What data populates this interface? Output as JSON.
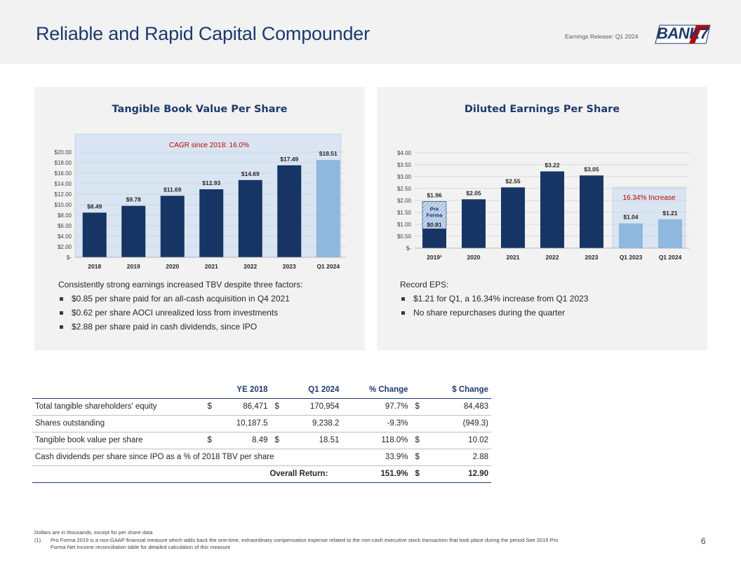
{
  "header": {
    "title": "Reliable and Rapid Capital Compounder",
    "release": "Earnings Release: Q1 2024",
    "logo_text": "BANK7"
  },
  "colors": {
    "navy": "#163564",
    "light_blue": "#8fb8de",
    "highlight": "#d9e5f2",
    "accent_red": "#c00000"
  },
  "chart_data": [
    {
      "type": "bar",
      "title": "Tangible Book Value Per Share",
      "categories": [
        "2018",
        "2019",
        "2020",
        "2021",
        "2022",
        "2023",
        "Q1 2024"
      ],
      "values": [
        8.49,
        9.78,
        11.69,
        12.93,
        14.69,
        17.49,
        18.51
      ],
      "data_labels": [
        "$8.49",
        "$9.78",
        "$11.69",
        "$12.93",
        "$14.69",
        "$17.49",
        "$18.51"
      ],
      "highlight_last": 1,
      "y_ticks": [
        "$-",
        "$2.00",
        "$4.00",
        "$6.00",
        "$8.00",
        "$10.00",
        "$12.00",
        "$14.00",
        "$16.00",
        "$18.00",
        "$20.00"
      ],
      "ylim": [
        0,
        20
      ],
      "annotation": "CAGR since 2018: 16.0%",
      "grid": true
    },
    {
      "type": "bar",
      "title": "Diluted Earnings Per Share",
      "categories": [
        "2019¹",
        "2020",
        "2021",
        "2022",
        "2023",
        "Q1 2023",
        "Q1 2024"
      ],
      "values": [
        0.81,
        2.05,
        2.55,
        3.22,
        3.05,
        1.04,
        1.21
      ],
      "pro_forma_total": 1.96,
      "pro_forma_label": "Pro Forma",
      "data_labels": [
        "$0.81",
        "$2.05",
        "$2.55",
        "$3.22",
        "$3.05",
        "$1.04",
        "$1.21"
      ],
      "pro_forma_data_label": "$1.96",
      "highlight_last": 2,
      "y_ticks": [
        "$-",
        "$0.50",
        "$1.00",
        "$1.50",
        "$2.00",
        "$2.50",
        "$3.00",
        "$3.50",
        "$4.00"
      ],
      "ylim": [
        0,
        4
      ],
      "annotation": "16.34% Increase",
      "grid": true
    }
  ],
  "left_text": {
    "lead": "Consistently strong earnings increased TBV despite three factors:",
    "bullets": [
      "$0.85 per share paid for an all-cash acquisition in Q4 2021",
      "$0.62 per share AOCI unrealized loss from investments",
      "$2.88 per share paid in cash dividends, since IPO"
    ]
  },
  "right_text": {
    "lead": "Record EPS:",
    "bullets": [
      "$1.21 for Q1, a 16.34% increase from Q1 2023",
      "No share repurchases during the quarter"
    ]
  },
  "table": {
    "headers": [
      "YE 2018",
      "Q1 2024",
      "% Change",
      "$ Change"
    ],
    "rows": [
      {
        "label": "Total tangible shareholders' equity",
        "c1": "$",
        "v1": "86,471",
        "c2": "$",
        "v2": "170,954",
        "pct": "97.7%",
        "c3": "$",
        "v3": "84,483"
      },
      {
        "label": "Shares outstanding",
        "c1": "",
        "v1": "10,187.5",
        "c2": "",
        "v2": "9,238.2",
        "pct": "-9.3%",
        "c3": "",
        "v3": "(949.3)"
      },
      {
        "label": "Tangible book value per share",
        "c1": "$",
        "v1": "8.49",
        "c2": "$",
        "v2": "18.51",
        "pct": "118.0%",
        "c3": "$",
        "v3": "10.02"
      },
      {
        "label": "Cash dividends per share since IPO as a % of 2018 TBV per share",
        "pct": "33.9%",
        "c3": "$",
        "v3": "2.88"
      }
    ],
    "total": {
      "label": "Overall Return:",
      "pct": "151.9%",
      "c3": "$",
      "v3": "12.90"
    }
  },
  "footnotes": {
    "note": "Dollars are in thousands, except for per share data",
    "items": [
      {
        "num": "(1)",
        "text": "Pro Forma 2019 is a non-GAAP financial measure which adds back the one-time, extraordinary compensation expense related to the non-cash executive stock transaction that took place during the period  See 2019 Pro Forma Net Income reconciliation table for detailed calculation of this measure"
      }
    ]
  },
  "page_number": "6"
}
